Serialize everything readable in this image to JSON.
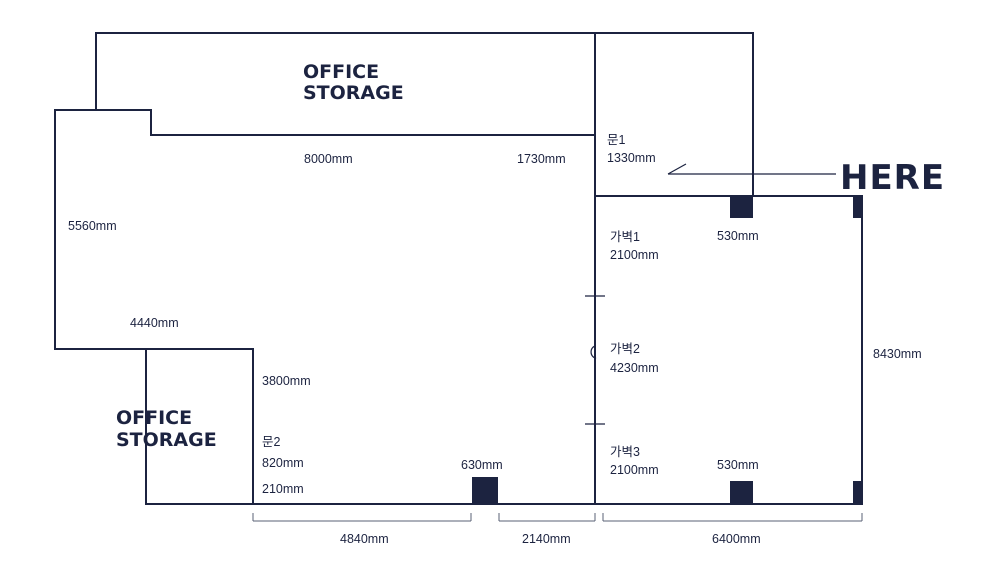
{
  "rooms": {
    "top_storage": [
      "OFFICE",
      "STORAGE"
    ],
    "bottom_storage": [
      "OFFICE",
      "STORAGE"
    ]
  },
  "here_label": "HERE",
  "dimensions": {
    "top_wall_8000": "8000mm",
    "top_wall_1730": "1730mm",
    "left_wall_5560": "5560mm",
    "left_step_4440": "4440mm",
    "inner_3800": "3800mm",
    "bottom_4840": "4840mm",
    "bottom_2140": "2140mm",
    "bottom_6400": "6400mm",
    "right_8430": "8430mm",
    "column_630": "630mm",
    "column_530_top": "530mm",
    "column_530_bottom": "530mm",
    "gap_210": "210mm"
  },
  "doors": {
    "door1": {
      "name": "문1",
      "width": "1330mm"
    },
    "door2": {
      "name": "문2",
      "width": "820mm"
    }
  },
  "partitions": {
    "p1": {
      "name": "가벽1",
      "width": "2100mm"
    },
    "p2": {
      "name": "가벽2",
      "width": "4230mm"
    },
    "p3": {
      "name": "가벽3",
      "width": "2100mm"
    }
  }
}
